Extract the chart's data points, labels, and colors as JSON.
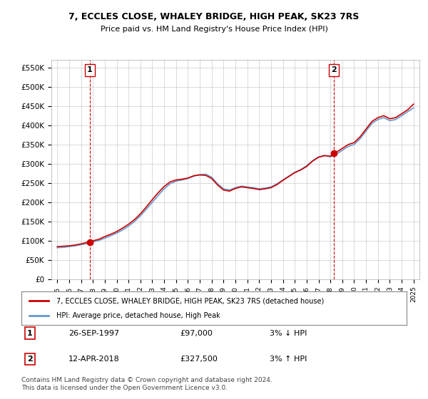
{
  "title1": "7, ECCLES CLOSE, WHALEY BRIDGE, HIGH PEAK, SK23 7RS",
  "title2": "Price paid vs. HM Land Registry's House Price Index (HPI)",
  "legend1": "7, ECCLES CLOSE, WHALEY BRIDGE, HIGH PEAK, SK23 7RS (detached house)",
  "legend2": "HPI: Average price, detached house, High Peak",
  "annotation1_label": "1",
  "annotation1_date": "26-SEP-1997",
  "annotation1_price": "£97,000",
  "annotation1_hpi": "3% ↓ HPI",
  "annotation1_year": 1997.73,
  "annotation1_value": 97000,
  "annotation2_label": "2",
  "annotation2_date": "12-APR-2018",
  "annotation2_price": "£327,500",
  "annotation2_hpi": "3% ↑ HPI",
  "annotation2_year": 2018.28,
  "annotation2_value": 327500,
  "ylim_min": 0,
  "ylim_max": 570000,
  "ytick_step": 50000,
  "footer": "Contains HM Land Registry data © Crown copyright and database right 2024.\nThis data is licensed under the Open Government Licence v3.0.",
  "line_color_price": "#cc0000",
  "line_color_hpi": "#6699cc",
  "grid_color": "#cccccc",
  "background_color": "#ffffff"
}
